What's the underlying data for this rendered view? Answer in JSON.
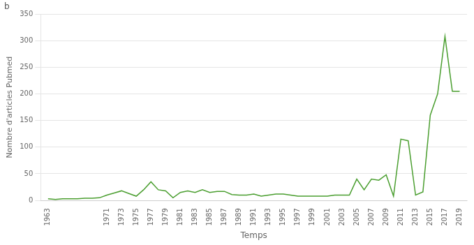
{
  "chart_data": {
    "type": "line",
    "xlabel": "Temps",
    "ylabel": "Nombre d'articles Pubmed",
    "annotations": [
      "b"
    ],
    "x": [
      1963,
      1964,
      1965,
      1966,
      1967,
      1968,
      1969,
      1970,
      1971,
      1972,
      1973,
      1974,
      1975,
      1976,
      1977,
      1978,
      1979,
      1980,
      1981,
      1982,
      1983,
      1984,
      1985,
      1986,
      1987,
      1988,
      1989,
      1990,
      1991,
      1992,
      1993,
      1994,
      1995,
      1996,
      1997,
      1998,
      1999,
      2000,
      2001,
      2002,
      2003,
      2004,
      2005,
      2006,
      2007,
      2008,
      2009,
      2010,
      2011,
      2012,
      2013,
      2014,
      2015,
      2016,
      2017,
      2018,
      2019
    ],
    "values": [
      3,
      2,
      3,
      3,
      3,
      4,
      4,
      5,
      10,
      14,
      18,
      13,
      8,
      20,
      35,
      20,
      18,
      5,
      15,
      18,
      15,
      20,
      15,
      17,
      17,
      11,
      10,
      10,
      12,
      8,
      10,
      12,
      12,
      10,
      8,
      8,
      8,
      8,
      8,
      10,
      10,
      10,
      40,
      20,
      40,
      38,
      48,
      8,
      115,
      112,
      10,
      16,
      160,
      200,
      308,
      205,
      205
    ],
    "color": "#4a9e2f",
    "xlim": [
      1962,
      2020
    ],
    "xticks": [
      1963,
      1971,
      1973,
      1975,
      1977,
      1979,
      1981,
      1983,
      1985,
      1987,
      1989,
      1991,
      1993,
      1995,
      1997,
      1999,
      2001,
      2003,
      2005,
      2007,
      2009,
      2011,
      2013,
      2015,
      2017,
      2019
    ],
    "ylim": [
      0,
      350
    ],
    "yticks": [
      0,
      50,
      100,
      150,
      200,
      250,
      300,
      350
    ],
    "grid": "y"
  }
}
